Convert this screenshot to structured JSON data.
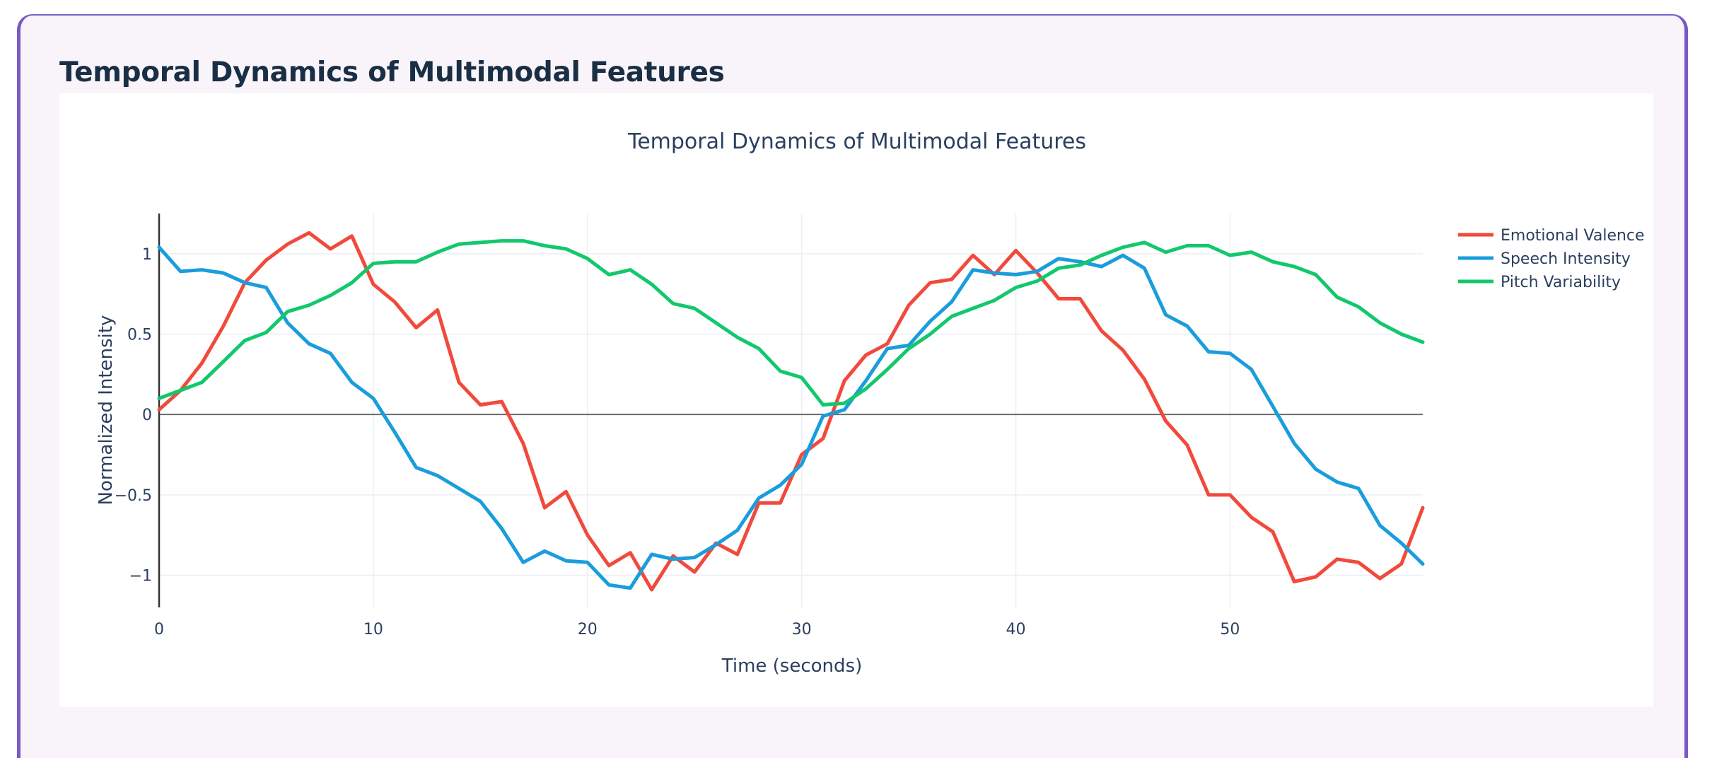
{
  "page": {
    "heading": "Temporal Dynamics of Multimodal Features"
  },
  "colors": {
    "emotional_valence": "#f14a3c",
    "speech_intensity": "#1a9ddc",
    "pitch_variability": "#12c86c",
    "accent": "#7b58c4"
  },
  "chart_data": {
    "type": "line",
    "title": "Temporal Dynamics of Multimodal Features",
    "xlabel": "Time (seconds)",
    "ylabel": "Normalized Intensity",
    "xlim": [
      0,
      59
    ],
    "ylim": [
      -1.2,
      1.25
    ],
    "xticks": [
      0,
      10,
      20,
      30,
      40,
      50
    ],
    "yticks": [
      -1,
      -0.5,
      0,
      0.5,
      1
    ],
    "xtick_labels": [
      "0",
      "10",
      "20",
      "30",
      "40",
      "50"
    ],
    "ytick_labels": [
      "−1",
      "−0.5",
      "0",
      "0.5",
      "1"
    ],
    "grid": true,
    "legend_position": "top-right",
    "x": [
      0,
      1,
      2,
      3,
      4,
      5,
      6,
      7,
      8,
      9,
      10,
      11,
      12,
      13,
      14,
      15,
      16,
      17,
      18,
      19,
      20,
      21,
      22,
      23,
      24,
      25,
      26,
      27,
      28,
      29,
      30,
      31,
      32,
      33,
      34,
      35,
      36,
      37,
      38,
      39,
      40,
      41,
      42,
      43,
      44,
      45,
      46,
      47,
      48,
      49,
      50,
      51,
      52,
      53,
      54,
      55,
      56,
      57,
      58,
      59
    ],
    "series": [
      {
        "name": "Emotional Valence",
        "key": "emotional_valence",
        "values": [
          0.03,
          0.15,
          0.32,
          0.55,
          0.82,
          0.96,
          1.06,
          1.13,
          1.03,
          1.11,
          0.81,
          0.7,
          0.54,
          0.65,
          0.2,
          0.06,
          0.08,
          -0.18,
          -0.58,
          -0.48,
          -0.75,
          -0.94,
          -0.86,
          -1.09,
          -0.88,
          -0.98,
          -0.8,
          -0.87,
          -0.55,
          -0.55,
          -0.25,
          -0.15,
          0.21,
          0.37,
          0.44,
          0.68,
          0.82,
          0.84,
          0.99,
          0.87,
          1.02,
          0.88,
          0.72,
          0.72,
          0.52,
          0.4,
          0.22,
          -0.04,
          -0.19,
          -0.5,
          -0.5,
          -0.64,
          -0.73,
          -1.04,
          -1.01,
          -0.9,
          -0.92,
          -1.02,
          -0.93,
          -0.58
        ]
      },
      {
        "name": "Speech Intensity",
        "key": "speech_intensity",
        "values": [
          1.04,
          0.89,
          0.9,
          0.88,
          0.82,
          0.79,
          0.57,
          0.44,
          0.38,
          0.2,
          0.1,
          -0.11,
          -0.33,
          -0.38,
          -0.46,
          -0.54,
          -0.71,
          -0.92,
          -0.85,
          -0.91,
          -0.92,
          -1.06,
          -1.08,
          -0.87,
          -0.9,
          -0.89,
          -0.81,
          -0.72,
          -0.52,
          -0.44,
          -0.31,
          -0.01,
          0.03,
          0.21,
          0.41,
          0.43,
          0.58,
          0.7,
          0.9,
          0.88,
          0.87,
          0.89,
          0.97,
          0.95,
          0.92,
          0.99,
          0.91,
          0.62,
          0.55,
          0.39,
          0.38,
          0.28,
          0.05,
          -0.18,
          -0.34,
          -0.42,
          -0.46,
          -0.69,
          -0.8,
          -0.93
        ]
      },
      {
        "name": "Pitch Variability",
        "key": "pitch_variability",
        "values": [
          0.1,
          0.15,
          0.2,
          0.33,
          0.46,
          0.51,
          0.64,
          0.68,
          0.74,
          0.82,
          0.94,
          0.95,
          0.95,
          1.01,
          1.06,
          1.07,
          1.08,
          1.08,
          1.05,
          1.03,
          0.97,
          0.87,
          0.9,
          0.81,
          0.69,
          0.66,
          0.57,
          0.48,
          0.41,
          0.27,
          0.23,
          0.06,
          0.07,
          0.16,
          0.28,
          0.41,
          0.5,
          0.61,
          0.66,
          0.71,
          0.79,
          0.83,
          0.91,
          0.93,
          0.99,
          1.04,
          1.07,
          1.01,
          1.05,
          1.05,
          0.99,
          1.01,
          0.95,
          0.92,
          0.87,
          0.73,
          0.67,
          0.57,
          0.5,
          0.45
        ]
      }
    ]
  }
}
